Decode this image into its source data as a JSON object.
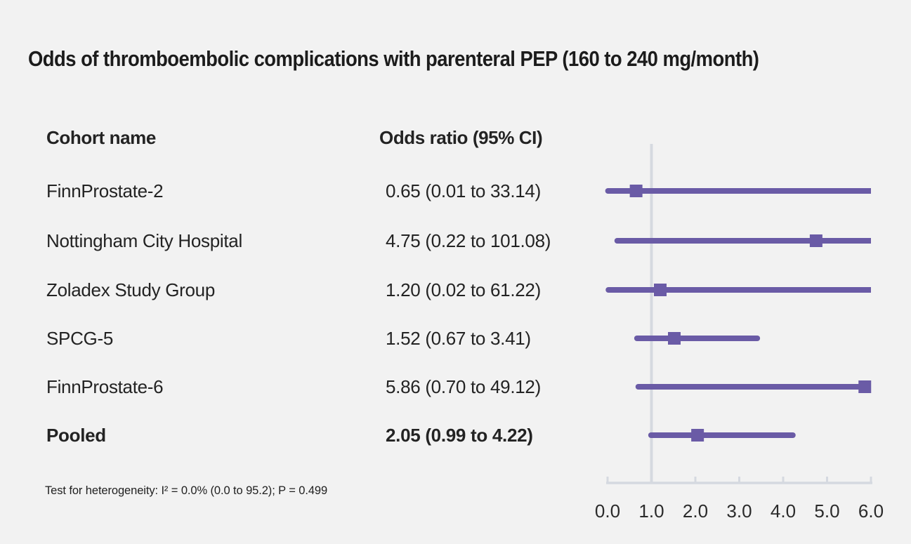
{
  "title": "Odds of thromboembolic complications with parenteral PEP (160 to 240 mg/month)",
  "columns": {
    "cohort": "Cohort name",
    "odds": "Odds ratio (95% CI)"
  },
  "footnote": "Test for heterogeneity: I² = 0.0% (0.0 to 95.2); P = 0.499",
  "colors": {
    "accent": "#6a5ba6",
    "axis_gray": "#d5d9e0",
    "background": "#f2f2f2",
    "text": "#232323"
  },
  "chart_data": {
    "type": "forest",
    "title": "Odds of thromboembolic complications with parenteral PEP (160 to 240 mg/month)",
    "xlabel": "",
    "axis": {
      "min": 0,
      "max": 6,
      "ticks": [
        "0.0",
        "1.0",
        "2.0",
        "3.0",
        "4.0",
        "5.0",
        "6.0"
      ],
      "tick_values": [
        0,
        1,
        2,
        3,
        4,
        5,
        6
      ],
      "reference_line": 1.0,
      "grid": false
    },
    "rows": [
      {
        "label": "FinnProstate-2",
        "display": "0.65 (0.01 to 33.14)",
        "estimate": 0.65,
        "lower": 0.01,
        "upper": 33.14,
        "bold": false
      },
      {
        "label": "Nottingham City Hospital",
        "display": "4.75 (0.22 to 101.08)",
        "estimate": 4.75,
        "lower": 0.22,
        "upper": 101.08,
        "bold": false
      },
      {
        "label": "Zoladex Study Group",
        "display": "1.20 (0.02 to 61.22)",
        "estimate": 1.2,
        "lower": 0.02,
        "upper": 61.22,
        "bold": false
      },
      {
        "label": "SPCG-5",
        "display": "1.52 (0.67 to 3.41)",
        "estimate": 1.52,
        "lower": 0.67,
        "upper": 3.41,
        "bold": false
      },
      {
        "label": "FinnProstate-6",
        "display": "5.86 (0.70 to 49.12)",
        "estimate": 5.86,
        "lower": 0.7,
        "upper": 49.12,
        "bold": false
      },
      {
        "label": "Pooled",
        "display": "2.05 (0.99 to 4.22)",
        "estimate": 2.05,
        "lower": 0.99,
        "upper": 4.22,
        "bold": true
      }
    ]
  }
}
